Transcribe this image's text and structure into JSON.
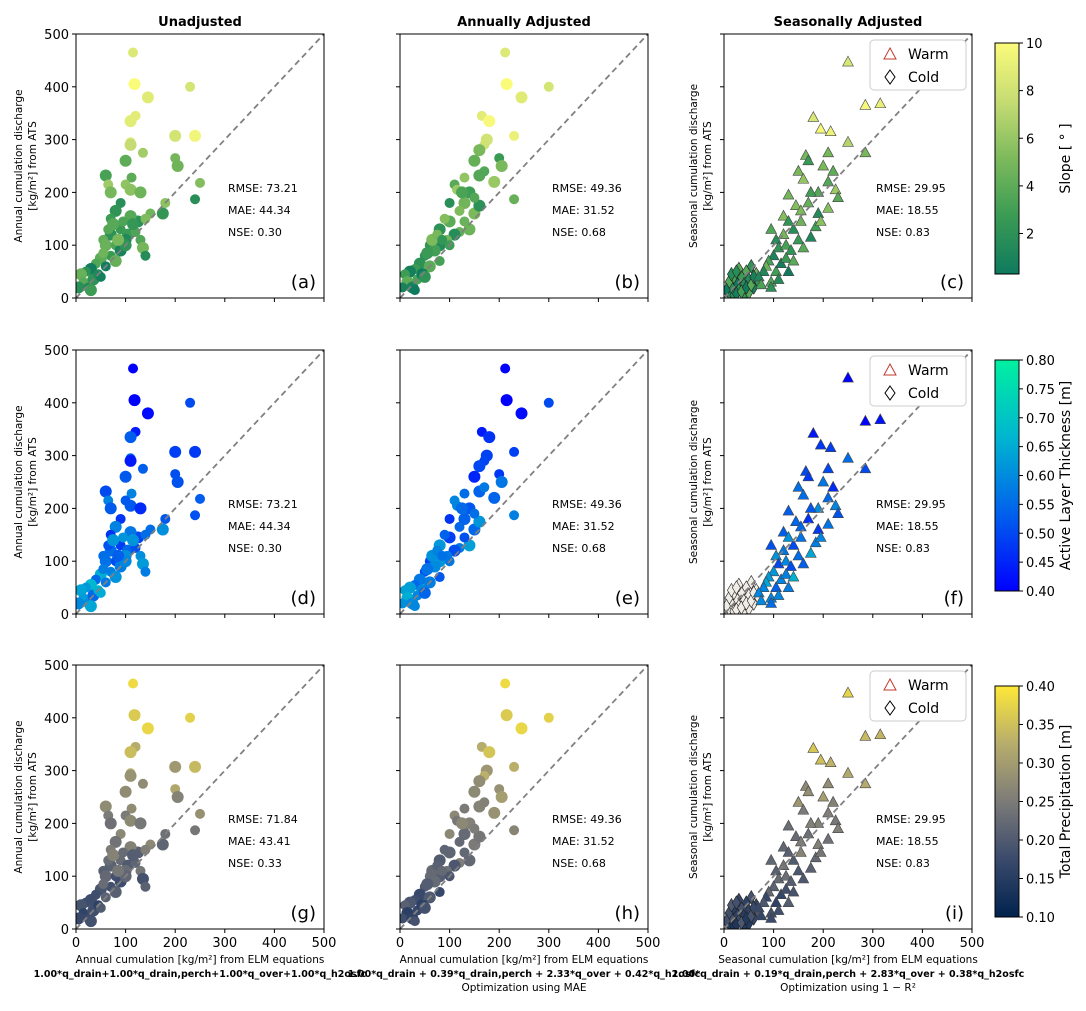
{
  "columns": [
    "Unadjusted",
    "Annually Adjusted",
    "Seasonally Adjusted"
  ],
  "ylabels": {
    "annual": [
      "Annual cumulation discharge",
      "[kg/m²]  from ATS"
    ],
    "seasonal": [
      "Seasonal cumulation discharge",
      "[kg/m²] from ATS"
    ]
  },
  "xlabels": [
    {
      "line1": "Annual cumulation [kg/m²] from ELM equations",
      "line2": "1.00*q_drain+1.00*q_drain,perch+1.00*q_over+1.00*q_h2osfc",
      "line3": ""
    },
    {
      "line1": "Annual cumulation [kg/m²] from ELM equations",
      "line2": "1.00*q_drain + 0.39*q_drain,perch + 2.33*q_over + 0.42*q_h2osfc",
      "line3": "Optimization using MAE"
    },
    {
      "line1": "Seasonal cumulation [kg/m²] from ELM equations",
      "line2": "1.00*q_drain + 0.19*q_drain,perch + 2.83*q_over + 0.38*q_h2osfc",
      "line3": "Optimization using 1 − R²"
    }
  ],
  "legend": {
    "warm": "Warm",
    "cold": "Cold"
  },
  "colorbars": [
    {
      "label": "Slope [ ° ]",
      "min": 0.3,
      "max": 10,
      "ticks": [
        "2",
        "4",
        "6",
        "8",
        "10"
      ],
      "tick_values": [
        2,
        4,
        6,
        8,
        10
      ],
      "colors": [
        "#0e7a5e",
        "#3a9b54",
        "#7dba5c",
        "#c6dc73",
        "#fbfb7a"
      ]
    },
    {
      "label": "Active Layer Thickness [m]",
      "min": 0.4,
      "max": 0.8,
      "ticks": [
        "0.40",
        "0.45",
        "0.50",
        "0.55",
        "0.60",
        "0.65",
        "0.70",
        "0.75",
        "0.80"
      ],
      "tick_values": [
        0.4,
        0.45,
        0.5,
        0.55,
        0.6,
        0.65,
        0.7,
        0.75,
        0.8
      ],
      "colors": [
        "#0000ff",
        "#0060ec",
        "#00b6d0",
        "#00f0a0"
      ]
    },
    {
      "label": "Total Precipitation [m]",
      "min": 0.1,
      "max": 0.4,
      "ticks": [
        "0.10",
        "0.15",
        "0.20",
        "0.25",
        "0.30",
        "0.35",
        "0.40"
      ],
      "tick_values": [
        0.1,
        0.15,
        0.2,
        0.25,
        0.3,
        0.35,
        0.4
      ],
      "colors": [
        "#00224e",
        "#3a4a6c",
        "#7c7b78",
        "#b7ad6c",
        "#fee838"
      ]
    }
  ],
  "panels": [
    {
      "label": "(a)",
      "rmse": "RMSE: 73.21",
      "mae": "MAE: 44.34",
      "nse": "NSE: 0.30"
    },
    {
      "label": "(b)",
      "rmse": "RMSE: 49.36",
      "mae": "MAE: 31.52",
      "nse": "NSE: 0.68"
    },
    {
      "label": "(c)",
      "rmse": "RMSE: 29.95",
      "mae": "MAE: 18.55",
      "nse": "NSE: 0.83"
    },
    {
      "label": "(d)",
      "rmse": "RMSE: 73.21",
      "mae": "MAE: 44.34",
      "nse": "NSE: 0.30"
    },
    {
      "label": "(e)",
      "rmse": "RMSE: 49.36",
      "mae": "MAE: 31.52",
      "nse": "NSE: 0.68"
    },
    {
      "label": "(f)",
      "rmse": "RMSE: 29.95",
      "mae": "MAE: 18.55",
      "nse": "NSE: 0.83"
    },
    {
      "label": "(g)",
      "rmse": "RMSE: 71.84",
      "mae": "MAE: 43.41",
      "nse": "NSE: 0.33"
    },
    {
      "label": "(h)",
      "rmse": "RMSE: 49.36",
      "mae": "MAE: 31.52",
      "nse": "NSE: 0.68"
    },
    {
      "label": "(i)",
      "rmse": "RMSE: 29.95",
      "mae": "MAE: 18.55",
      "nse": "NSE: 0.83"
    }
  ],
  "chart_data": {
    "type": "scatter",
    "xlim": [
      0,
      500
    ],
    "ylim": [
      0,
      500
    ],
    "xticks": [
      0,
      100,
      200,
      300,
      400,
      500
    ],
    "yticks": [
      0,
      100,
      200,
      300,
      400,
      500
    ],
    "reference_line": "1:1 dashed",
    "annual_points": {
      "unadjusted": [
        [
          115,
          465
        ],
        [
          118,
          405
        ],
        [
          120,
          345
        ],
        [
          145,
          380
        ],
        [
          230,
          400
        ],
        [
          240,
          307
        ],
        [
          250,
          218
        ],
        [
          200,
          307
        ],
        [
          200,
          265
        ],
        [
          205,
          250
        ],
        [
          240,
          187
        ],
        [
          110,
          335
        ],
        [
          110,
          295
        ],
        [
          110,
          290
        ],
        [
          135,
          275
        ],
        [
          100,
          260
        ],
        [
          112,
          228
        ],
        [
          60,
          232
        ],
        [
          65,
          215
        ],
        [
          70,
          200
        ],
        [
          100,
          215
        ],
        [
          110,
          205
        ],
        [
          90,
          180
        ],
        [
          130,
          200
        ],
        [
          180,
          180
        ],
        [
          175,
          160
        ],
        [
          150,
          160
        ],
        [
          125,
          145
        ],
        [
          140,
          150
        ],
        [
          80,
          165
        ],
        [
          70,
          150
        ],
        [
          110,
          155
        ],
        [
          90,
          130
        ],
        [
          105,
          120
        ],
        [
          120,
          125
        ],
        [
          100,
          110
        ],
        [
          130,
          110
        ],
        [
          135,
          95
        ],
        [
          140,
          80
        ],
        [
          70,
          120
        ],
        [
          55,
          110
        ],
        [
          60,
          100
        ],
        [
          80,
          100
        ],
        [
          90,
          90
        ],
        [
          70,
          80
        ],
        [
          50,
          75
        ],
        [
          40,
          65
        ],
        [
          30,
          55
        ],
        [
          20,
          50
        ],
        [
          10,
          45
        ],
        [
          15,
          30
        ],
        [
          5,
          20
        ],
        [
          25,
          20
        ],
        [
          35,
          35
        ],
        [
          60,
          60
        ],
        [
          80,
          70
        ],
        [
          45,
          45
        ],
        [
          100,
          100
        ],
        [
          65,
          130
        ],
        [
          75,
          140
        ],
        [
          95,
          145
        ],
        [
          115,
          140
        ],
        [
          55,
          85
        ],
        [
          85,
          110
        ],
        [
          50,
          40
        ],
        [
          30,
          15
        ]
      ],
      "annually_adjusted": [
        [
          212,
          465
        ],
        [
          215,
          405
        ],
        [
          165,
          345
        ],
        [
          245,
          380
        ],
        [
          300,
          400
        ],
        [
          180,
          335
        ],
        [
          230,
          307
        ],
        [
          175,
          300
        ],
        [
          170,
          290
        ],
        [
          160,
          280
        ],
        [
          200,
          265
        ],
        [
          205,
          250
        ],
        [
          230,
          187
        ],
        [
          150,
          260
        ],
        [
          130,
          228
        ],
        [
          160,
          232
        ],
        [
          110,
          215
        ],
        [
          140,
          200
        ],
        [
          115,
          205
        ],
        [
          130,
          180
        ],
        [
          120,
          165
        ],
        [
          150,
          160
        ],
        [
          100,
          180
        ],
        [
          100,
          145
        ],
        [
          90,
          150
        ],
        [
          80,
          130
        ],
        [
          120,
          125
        ],
        [
          110,
          120
        ],
        [
          95,
          110
        ],
        [
          80,
          100
        ],
        [
          60,
          100
        ],
        [
          70,
          90
        ],
        [
          50,
          80
        ],
        [
          40,
          65
        ],
        [
          30,
          55
        ],
        [
          20,
          50
        ],
        [
          10,
          45
        ],
        [
          15,
          30
        ],
        [
          5,
          20
        ],
        [
          25,
          20
        ],
        [
          35,
          35
        ],
        [
          60,
          60
        ],
        [
          80,
          70
        ],
        [
          45,
          45
        ],
        [
          100,
          100
        ],
        [
          140,
          130
        ],
        [
          130,
          145
        ],
        [
          160,
          175
        ],
        [
          150,
          190
        ],
        [
          65,
          110
        ],
        [
          75,
          120
        ],
        [
          55,
          85
        ],
        [
          85,
          110
        ],
        [
          50,
          40
        ],
        [
          30,
          15
        ],
        [
          190,
          220
        ],
        [
          170,
          240
        ],
        [
          125,
          200
        ]
      ],
      "sizes": [
        9,
        11
      ]
    },
    "seasonal_points": {
      "warm": [
        [
          250,
          447
        ],
        [
          285,
          365
        ],
        [
          315,
          368
        ],
        [
          180,
          342
        ],
        [
          250,
          295
        ],
        [
          195,
          320
        ],
        [
          215,
          315
        ],
        [
          210,
          275
        ],
        [
          285,
          275
        ],
        [
          165,
          270
        ],
        [
          170,
          260
        ],
        [
          200,
          250
        ],
        [
          150,
          240
        ],
        [
          220,
          240
        ],
        [
          160,
          225
        ],
        [
          210,
          220
        ],
        [
          190,
          200
        ],
        [
          175,
          200
        ],
        [
          225,
          205
        ],
        [
          130,
          195
        ],
        [
          145,
          175
        ],
        [
          155,
          165
        ],
        [
          190,
          160
        ],
        [
          170,
          180
        ],
        [
          120,
          155
        ],
        [
          130,
          145
        ],
        [
          155,
          145
        ],
        [
          140,
          130
        ],
        [
          120,
          120
        ],
        [
          105,
          110
        ],
        [
          110,
          95
        ],
        [
          125,
          100
        ],
        [
          135,
          90
        ],
        [
          150,
          110
        ],
        [
          95,
          130
        ],
        [
          100,
          80
        ],
        [
          90,
          70
        ],
        [
          85,
          60
        ],
        [
          80,
          50
        ],
        [
          70,
          40
        ],
        [
          75,
          25
        ],
        [
          95,
          30
        ],
        [
          105,
          50
        ],
        [
          115,
          65
        ],
        [
          125,
          75
        ],
        [
          140,
          70
        ],
        [
          160,
          95
        ],
        [
          175,
          115
        ],
        [
          185,
          135
        ],
        [
          195,
          145
        ],
        [
          210,
          170
        ],
        [
          230,
          190
        ],
        [
          110,
          35
        ],
        [
          95,
          20
        ],
        [
          130,
          50
        ]
      ],
      "cold": [
        [
          10,
          10
        ],
        [
          15,
          20
        ],
        [
          20,
          5
        ],
        [
          25,
          30
        ],
        [
          30,
          15
        ],
        [
          35,
          40
        ],
        [
          40,
          25
        ],
        [
          45,
          50
        ],
        [
          50,
          35
        ],
        [
          55,
          60
        ],
        [
          60,
          20
        ],
        [
          65,
          45
        ],
        [
          20,
          40
        ],
        [
          30,
          55
        ],
        [
          10,
          30
        ],
        [
          5,
          15
        ],
        [
          40,
          5
        ],
        [
          50,
          10
        ],
        [
          25,
          8
        ],
        [
          35,
          12
        ],
        [
          45,
          20
        ],
        [
          55,
          25
        ],
        [
          60,
          40
        ],
        [
          15,
          45
        ],
        [
          70,
          30
        ],
        [
          25,
          50
        ]
      ],
      "size": 9
    }
  }
}
